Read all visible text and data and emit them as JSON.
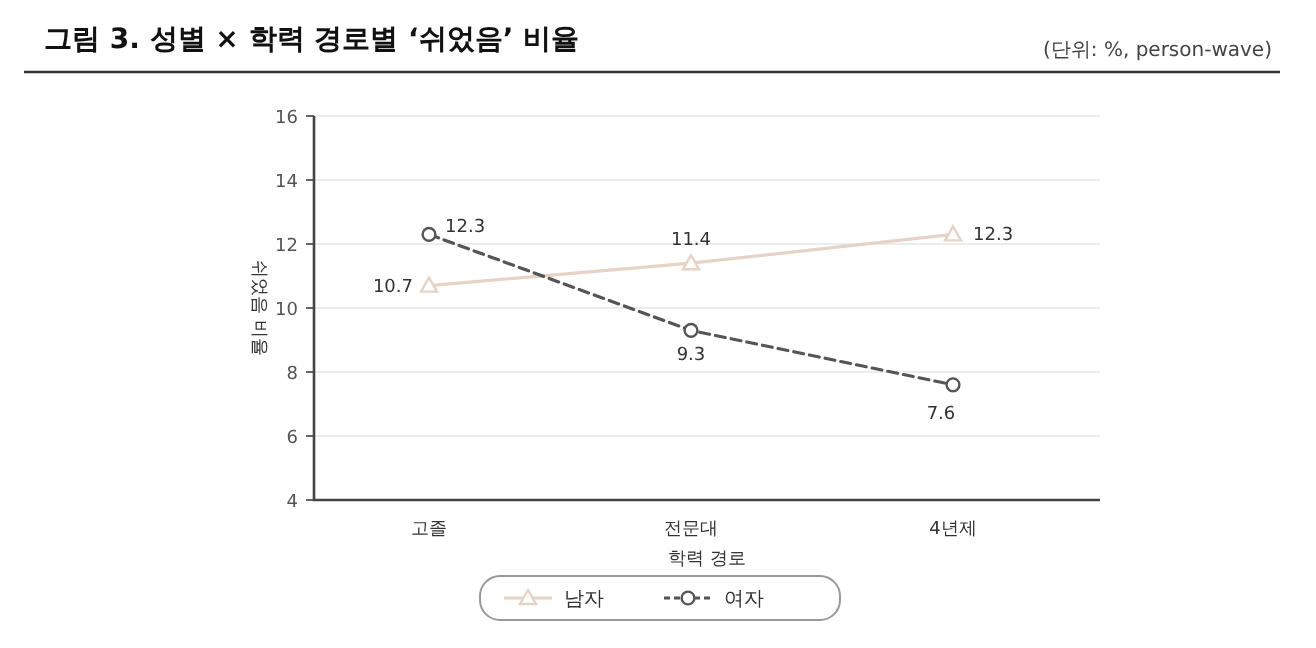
{
  "chart_data": {
    "type": "line",
    "title": "그림 3. 성별 × 학력 경로별 ‘쉬었음’ 비율",
    "subtitle": "(단위: %, person-wave)",
    "xlabel": "학력 경로",
    "ylabel": "쉬었음 비율",
    "categories": [
      "고졸",
      "전문대",
      "4년제"
    ],
    "series": [
      {
        "name": "남자",
        "color": "#e6d3c6",
        "values": [
          10.7,
          11.4,
          12.3
        ],
        "marker": "triangle",
        "line_style": "solid"
      },
      {
        "name": "여자",
        "color": "#555555",
        "values": [
          12.3,
          9.3,
          7.6
        ],
        "marker": "circle",
        "line_style": "dashed"
      }
    ],
    "ylim": [
      4,
      16
    ],
    "yticks": [
      4,
      6,
      8,
      10,
      12,
      14,
      16
    ],
    "grid": "y",
    "legend": "bottom",
    "data_labels": true
  }
}
